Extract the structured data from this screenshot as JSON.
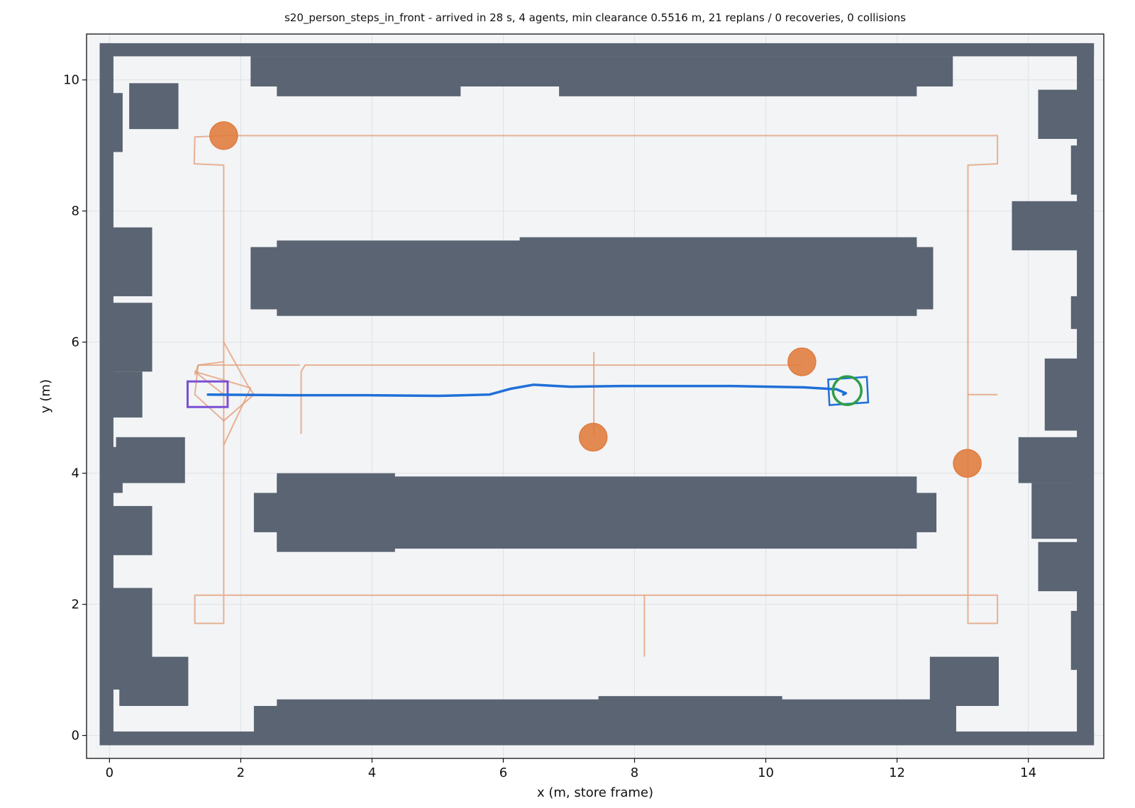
{
  "chart_data": {
    "type": "trajectory",
    "title": "s20_person_steps_in_front - arrived in 28 s, 4 agents, min clearance 0.5516 m, 21 replans / 0 recoveries, 0 collisions",
    "x_label": "x (m, store frame)",
    "y_label": "y (m)",
    "xlim": [
      -0.35,
      15.15
    ],
    "ylim": [
      -0.35,
      10.7
    ],
    "xticks": [
      0,
      2,
      4,
      6,
      8,
      10,
      12,
      14
    ],
    "yticks": [
      0,
      2,
      4,
      6,
      8,
      10
    ],
    "grid": true,
    "background_color": "#f2f4f6",
    "obstacle_color": "#5a6472",
    "obstacles": [
      [
        -0.15,
        -0.15,
        15.0,
        0.06
      ],
      [
        -0.15,
        10.36,
        15.0,
        10.56
      ],
      [
        -0.15,
        -0.15,
        0.06,
        10.56
      ],
      [
        14.74,
        -0.15,
        15.0,
        10.56
      ],
      [
        2.15,
        9.9,
        12.85,
        10.36
      ],
      [
        2.55,
        9.75,
        5.35,
        10.36
      ],
      [
        6.85,
        9.75,
        12.3,
        10.36
      ],
      [
        2.15,
        6.5,
        12.55,
        7.45
      ],
      [
        2.55,
        6.4,
        12.3,
        7.55
      ],
      [
        6.25,
        6.4,
        12.3,
        7.6
      ],
      [
        2.2,
        3.1,
        12.6,
        3.7
      ],
      [
        2.55,
        2.85,
        12.3,
        3.95
      ],
      [
        2.55,
        2.8,
        4.35,
        4.0
      ],
      [
        2.2,
        0.05,
        12.9,
        0.45
      ],
      [
        2.55,
        0.05,
        12.9,
        0.55
      ],
      [
        7.45,
        0.05,
        10.25,
        0.6
      ],
      [
        12.5,
        0.45,
        13.55,
        1.2
      ],
      [
        0.05,
        8.9,
        0.2,
        9.8
      ],
      [
        0.3,
        9.25,
        1.05,
        9.95
      ],
      [
        0.05,
        6.7,
        0.65,
        7.75
      ],
      [
        0.05,
        5.55,
        0.65,
        6.6
      ],
      [
        0.05,
        4.85,
        0.5,
        5.55
      ],
      [
        0.1,
        3.85,
        1.15,
        4.55
      ],
      [
        0.05,
        3.7,
        0.2,
        4.4
      ],
      [
        0.05,
        2.75,
        0.65,
        3.5
      ],
      [
        0.05,
        0.7,
        0.65,
        2.25
      ],
      [
        0.15,
        0.45,
        1.2,
        1.2
      ],
      [
        14.15,
        9.1,
        14.75,
        9.85
      ],
      [
        14.65,
        8.25,
        14.75,
        9.0
      ],
      [
        13.75,
        7.4,
        14.75,
        8.15
      ],
      [
        14.65,
        6.2,
        14.75,
        6.7
      ],
      [
        14.25,
        4.65,
        14.75,
        5.75
      ],
      [
        13.85,
        3.85,
        14.75,
        4.55
      ],
      [
        14.05,
        3.0,
        14.75,
        3.85
      ],
      [
        14.15,
        2.2,
        14.75,
        2.95
      ],
      [
        14.65,
        1.0,
        14.75,
        1.9
      ]
    ],
    "trail_color": "#e39a72",
    "trails": [
      {
        "x": [
          1.74,
          1.3,
          1.29,
          1.74,
          1.74,
          1.74,
          1.74,
          1.3,
          1.3,
          13.53,
          13.53,
          13.08,
          13.08,
          13.53,
          13.53,
          1.74
        ],
        "y": [
          9.15,
          9.13,
          8.72,
          8.7,
          6.0,
          4.43,
          1.71,
          1.71,
          2.14,
          2.14,
          1.71,
          1.71,
          8.7,
          8.72,
          9.15,
          9.15
        ]
      },
      {
        "x": [
          1.74,
          2.1,
          2.2,
          1.74,
          1.3,
          1.35,
          1.74
        ],
        "y": [
          6.0,
          5.35,
          5.2,
          4.8,
          5.2,
          5.65,
          5.7
        ]
      },
      {
        "x": [
          1.74,
          2.15,
          1.3,
          1.74
        ],
        "y": [
          4.43,
          5.3,
          5.55,
          5.2
        ]
      },
      {
        "x": [
          10.55,
          2.98,
          2.92,
          2.92
        ],
        "y": [
          5.65,
          5.65,
          5.55,
          4.6
        ]
      },
      {
        "x": [
          2.9,
          1.35,
          1.3
        ],
        "y": [
          5.65,
          5.65,
          5.5
        ]
      },
      {
        "x": [
          7.38,
          7.38
        ],
        "y": [
          4.55,
          5.85
        ]
      },
      {
        "x": [
          8.15,
          8.15
        ],
        "y": [
          2.14,
          1.2
        ]
      },
      {
        "x": [
          13.08,
          13.53
        ],
        "y": [
          5.2,
          5.2
        ]
      }
    ],
    "agent_color": "#e07b3c",
    "agents": {
      "x": [
        1.74,
        10.55,
        7.37,
        13.07
      ],
      "y": [
        9.15,
        5.7,
        4.55,
        4.15
      ]
    },
    "robot_color": "#1f6fd8",
    "robot_path": {
      "x": [
        1.5,
        2.78,
        3.9,
        5.01,
        5.79,
        6.12,
        6.46,
        7.02,
        7.8,
        9.47,
        10.58,
        11.08,
        11.22,
        11.18
      ],
      "y": [
        5.2,
        5.19,
        5.19,
        5.18,
        5.2,
        5.29,
        5.35,
        5.32,
        5.33,
        5.33,
        5.31,
        5.28,
        5.22,
        5.2
      ]
    },
    "footprint": {
      "x": [
        10.95,
        11.54,
        11.56,
        10.97
      ],
      "y": [
        5.43,
        5.47,
        5.08,
        5.04
      ]
    },
    "start_color": "#7b4fd6",
    "start": [
      1.19,
      5.01,
      1.8,
      5.4
    ],
    "goal_color": "#2e9e48",
    "goal": {
      "x": 11.24,
      "y": 5.26
    }
  }
}
